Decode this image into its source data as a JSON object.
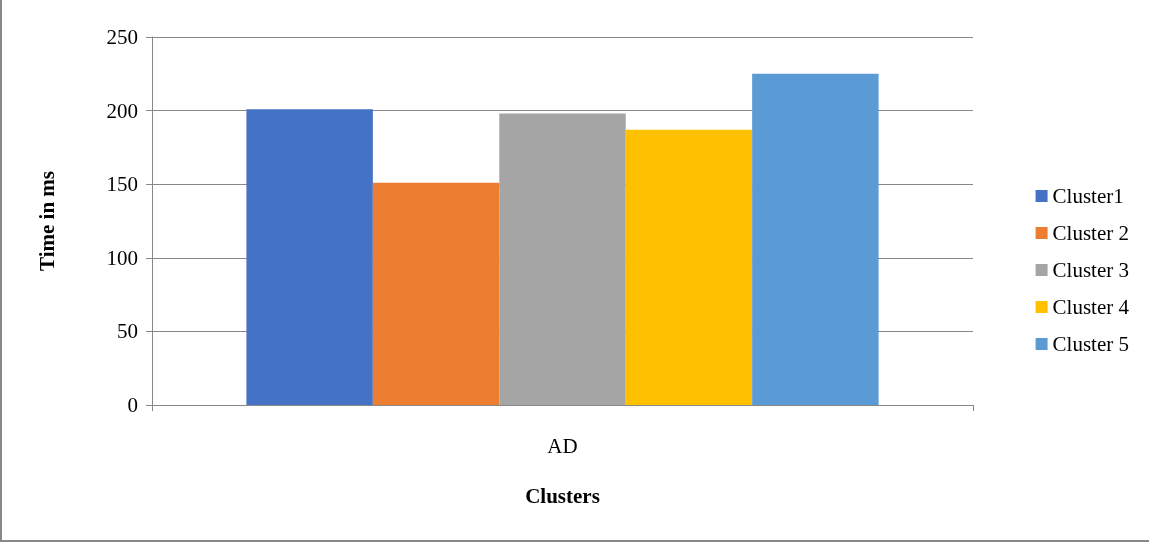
{
  "chart_data": {
    "type": "bar",
    "xlabel": "Clusters",
    "ylabel": "Time in ms",
    "categories": [
      "AD"
    ],
    "series": [
      {
        "name": "Cluster1",
        "color": "#4472c4",
        "values": [
          201
        ]
      },
      {
        "name": "Cluster 2",
        "color": "#ed7d31",
        "values": [
          151
        ]
      },
      {
        "name": "Cluster 3",
        "color": "#a5a5a5",
        "values": [
          198
        ]
      },
      {
        "name": "Cluster 4",
        "color": "#ffc000",
        "values": [
          187
        ]
      },
      {
        "name": "Cluster 5",
        "color": "#5b9bd5",
        "values": [
          225
        ]
      }
    ],
    "ylim": [
      0,
      250
    ],
    "yticks": [
      0,
      50,
      100,
      150,
      200,
      250
    ],
    "grid": "y",
    "legend": "right"
  }
}
